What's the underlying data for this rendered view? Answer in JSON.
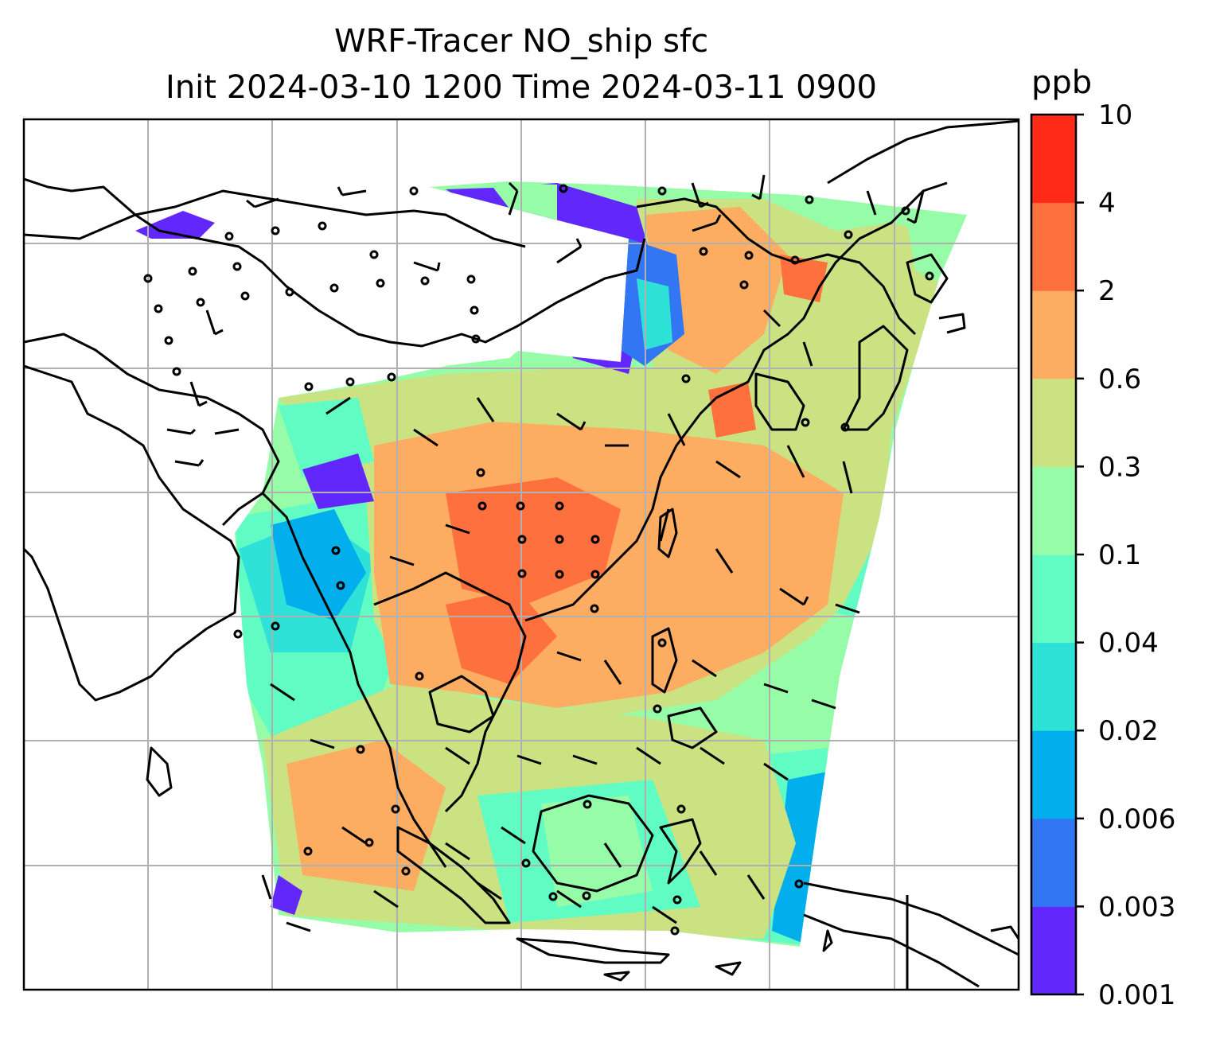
{
  "title_line1": "WRF-Tracer NO_ship sfc",
  "title_line2": "Init 2024-03-10 1200 Time 2024-03-11 0900",
  "colorbar": {
    "unit": "ppb",
    "tick_labels": [
      "0.001",
      "0.003",
      "0.006",
      "0.02",
      "0.04",
      "0.1",
      "0.3",
      "0.6",
      "2",
      "4",
      "10"
    ],
    "colors": [
      "#6228fb",
      "#3276f4",
      "#02aeeb",
      "#2ee2d8",
      "#61fbc4",
      "#96fca8",
      "#cae281",
      "#fcad62",
      "#fe703d",
      "#fe2a16"
    ]
  },
  "map": {
    "gridlines": true,
    "land_outline_color": "#000000",
    "no_data_color": "#ffffff"
  }
}
